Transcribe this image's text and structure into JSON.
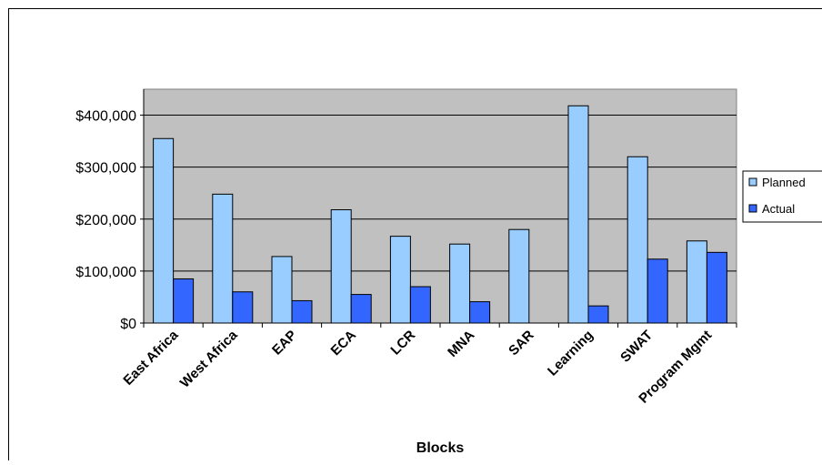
{
  "chart_data": {
    "type": "bar",
    "title": "",
    "xlabel": "Blocks",
    "ylabel": "",
    "ylim": [
      0,
      450000
    ],
    "yticks": [
      0,
      100000,
      200000,
      300000,
      400000
    ],
    "ytick_labels": [
      "$0",
      "$100,000",
      "$200,000",
      "$300,000",
      "$400,000"
    ],
    "categories": [
      "East Africa",
      "West Africa",
      "EAP",
      "ECA",
      "LCR",
      "MNA",
      "SAR",
      "Learning",
      "SWAT",
      "Program Mgmt"
    ],
    "series": [
      {
        "name": "Planned",
        "color": "#99ccff",
        "values": [
          355000,
          248000,
          128000,
          218000,
          167000,
          152000,
          180000,
          418000,
          320000,
          158000
        ]
      },
      {
        "name": "Actual",
        "color": "#3366ff",
        "values": [
          85000,
          60000,
          43000,
          55000,
          70000,
          41000,
          0,
          33000,
          123000,
          136000
        ]
      }
    ],
    "grid": true,
    "plot_background": "#c0c0c0",
    "legend_position": "right"
  }
}
